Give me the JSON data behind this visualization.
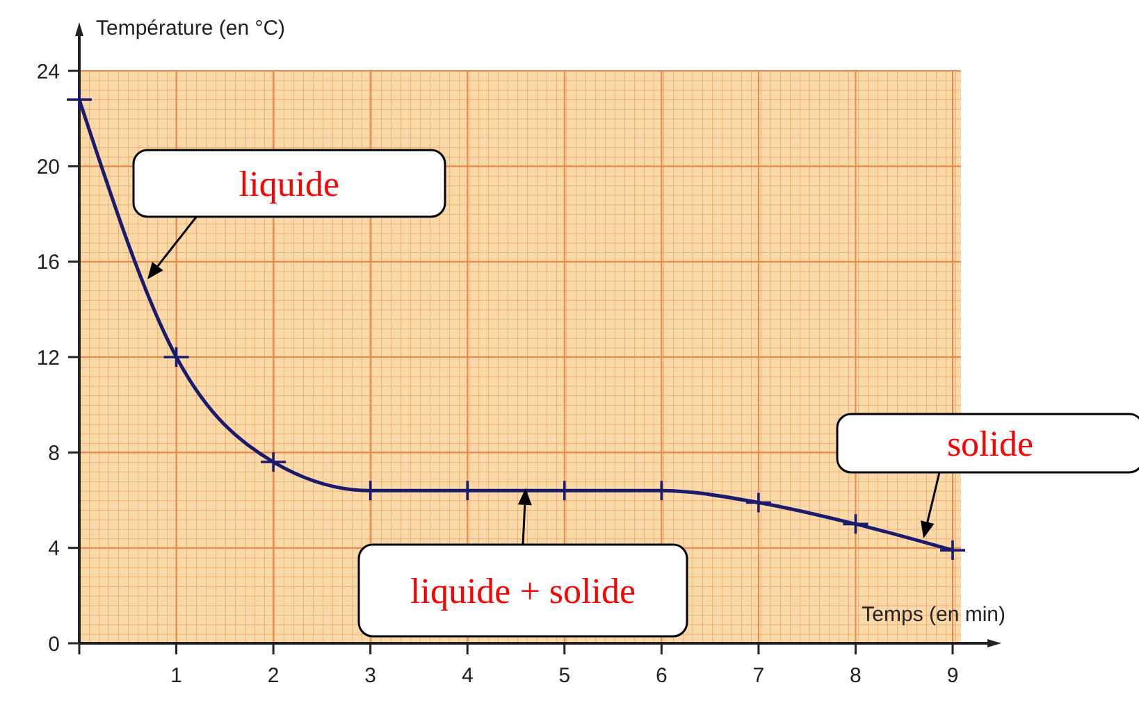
{
  "chart_data": {
    "type": "line",
    "xlabel": "Temps (en min)",
    "ylabel": "Température (en °C)",
    "x": [
      0,
      1,
      2,
      3,
      4,
      5,
      6,
      7,
      8,
      9
    ],
    "series": [
      {
        "color": "#1a1a6e",
        "values": [
          22.8,
          12.0,
          7.6,
          6.4,
          6.4,
          6.4,
          6.4,
          5.9,
          5.0,
          3.9
        ]
      }
    ],
    "xlim": [
      0,
      9
    ],
    "ylim": [
      0,
      24
    ],
    "xticks": [
      {
        "value": 0,
        "label": null
      },
      1,
      2,
      3,
      4,
      5,
      6,
      7,
      8,
      9
    ],
    "yticks": [
      0,
      4,
      8,
      12,
      16,
      20,
      24
    ],
    "grid": true,
    "marker": "cross",
    "line_style": "solid",
    "annotations": [
      "liquide",
      {
        "text": "liquide + solide",
        "x": 4.6,
        "y": 6.5
      },
      {
        "text": "solide",
        "x": 8.7,
        "y": 4.4
      }
    ]
  }
}
